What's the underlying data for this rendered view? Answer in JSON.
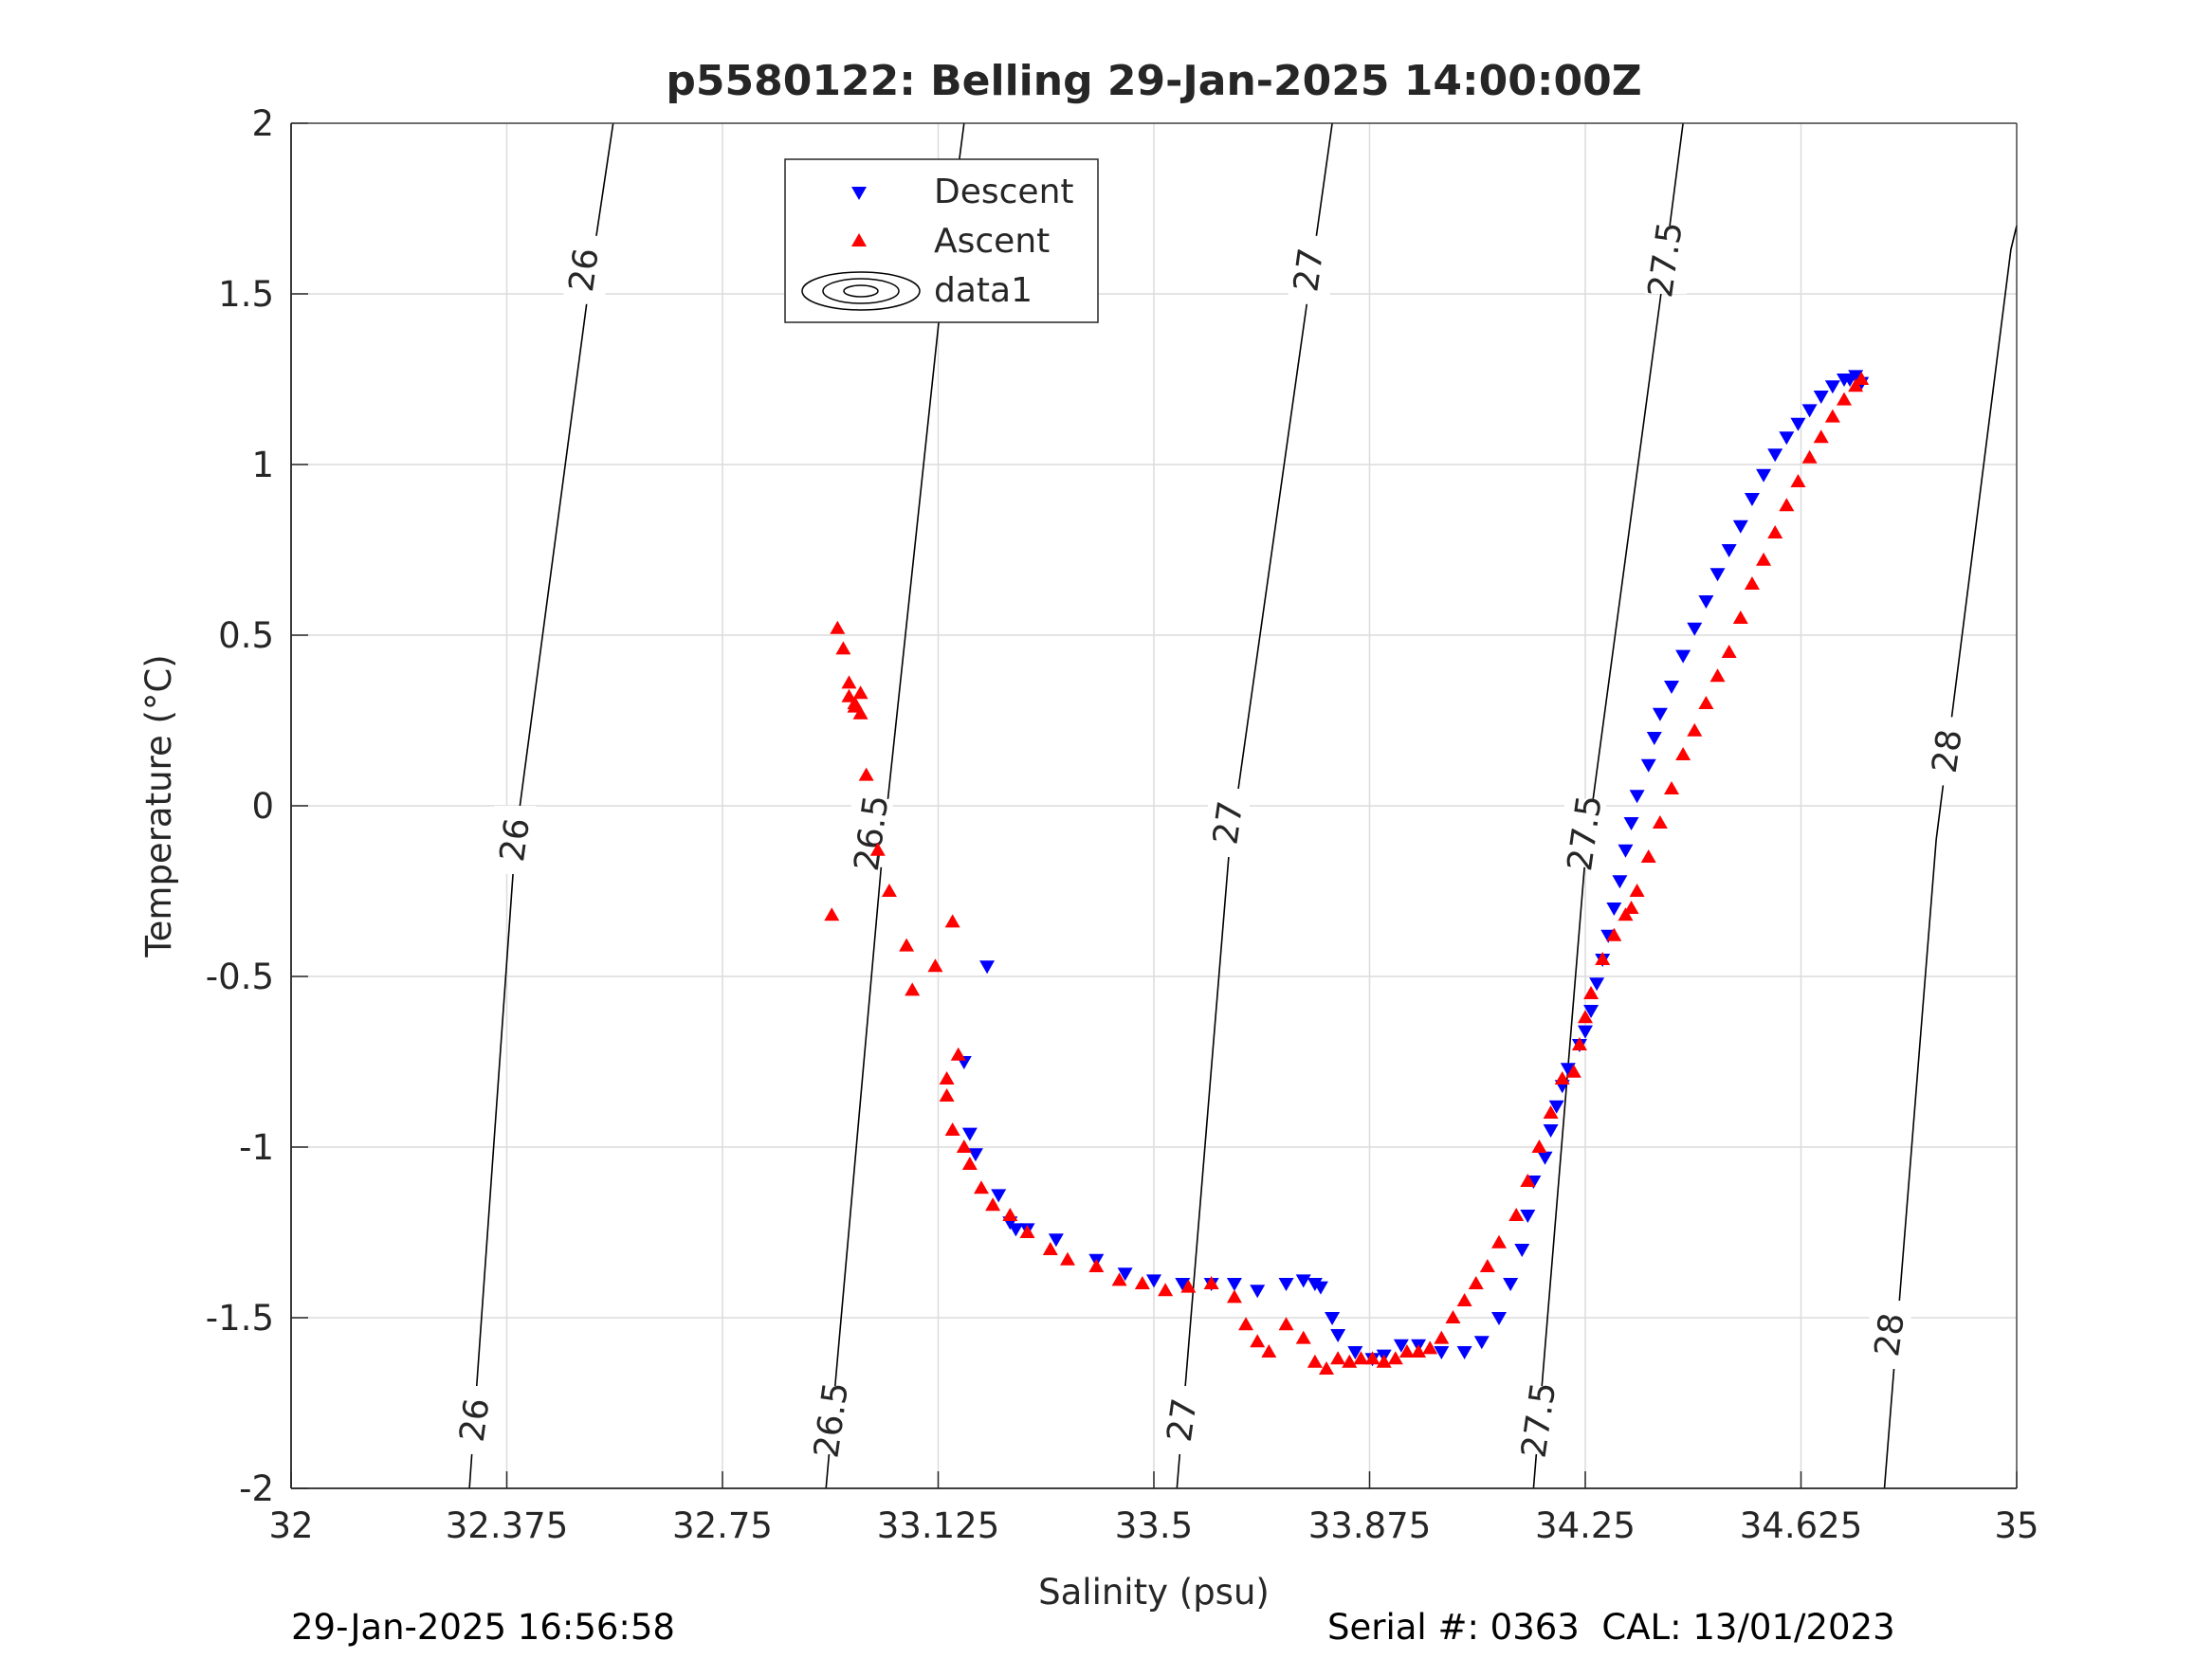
{
  "footer": {
    "timestamp": "29-Jan-2025 16:56:58",
    "serial": "Serial #: 0363  CAL: 13/01/2023"
  },
  "chart_data": {
    "type": "scatter",
    "title": "p5580122: Belling 29-Jan-2025 14:00:00Z",
    "xlabel": "Salinity (psu)",
    "ylabel": "Temperature (°C)",
    "xlim": [
      32,
      35
    ],
    "ylim": [
      -2,
      2
    ],
    "x_ticks": [
      32,
      32.375,
      32.75,
      33.125,
      33.5,
      33.875,
      34.25,
      34.625,
      35
    ],
    "x_tick_labels": [
      "32",
      "32.375",
      "32.75",
      "33.125",
      "33.5",
      "33.875",
      "34.25",
      "34.625",
      "35"
    ],
    "y_ticks": [
      -2,
      -1.5,
      -1,
      -0.5,
      0,
      0.5,
      1,
      1.5,
      2
    ],
    "y_tick_labels": [
      "-2",
      "-1.5",
      "-1",
      "-0.5",
      "0",
      "0.5",
      "1",
      "1.5",
      "2"
    ],
    "grid": true,
    "legend_position": "top-center",
    "legend": [
      "Descent",
      "Ascent",
      "data1"
    ],
    "colors": {
      "descent": "#0000ff",
      "ascent": "#ff0000",
      "contour": "#000000",
      "grid": "#dcdcdc"
    },
    "density_contours": [
      {
        "label": "26",
        "points": [
          [
            32.31,
            -2
          ],
          [
            32.39,
            -0.1
          ],
          [
            32.52,
            1.55
          ],
          [
            32.56,
            2
          ]
        ],
        "label_positions": [
          [
            32.32,
            -1.8
          ],
          [
            32.39,
            -0.1
          ],
          [
            32.51,
            1.57
          ]
        ]
      },
      {
        "label": "26.5",
        "points": [
          [
            32.93,
            -2
          ],
          [
            33.03,
            -0.1
          ],
          [
            33.13,
            1.48
          ],
          [
            33.17,
            2
          ]
        ],
        "label_positions": [
          [
            32.94,
            -1.8
          ],
          [
            33.01,
            -0.08
          ],
          [
            33.15,
            1.6
          ]
        ]
      },
      {
        "label": "27",
        "points": [
          [
            33.54,
            -2
          ],
          [
            33.63,
            -0.15
          ],
          [
            33.77,
            1.52
          ],
          [
            33.81,
            2
          ]
        ],
        "label_positions": [
          [
            33.55,
            -1.8
          ],
          [
            33.63,
            -0.05
          ],
          [
            33.77,
            1.57
          ]
        ]
      },
      {
        "label": "27.5",
        "points": [
          [
            34.16,
            -2
          ],
          [
            34.25,
            -0.15
          ],
          [
            34.38,
            1.48
          ],
          [
            34.42,
            2
          ]
        ],
        "label_positions": [
          [
            34.17,
            -1.8
          ],
          [
            34.25,
            -0.08
          ],
          [
            34.39,
            1.6
          ]
        ]
      },
      {
        "label": "28",
        "points": [
          [
            34.77,
            -2
          ],
          [
            34.86,
            -0.1
          ],
          [
            34.99,
            1.63
          ],
          [
            35.0,
            1.7
          ]
        ],
        "label_positions": [
          [
            34.78,
            -1.55
          ],
          [
            34.88,
            0.16
          ]
        ]
      }
    ],
    "series": [
      {
        "name": "Descent",
        "marker": "triangle-down",
        "color": "#0000ff",
        "x": [
          33.21,
          33.17,
          33.18,
          33.19,
          33.23,
          33.25,
          33.26,
          33.28,
          33.33,
          33.4,
          33.45,
          33.5,
          33.55,
          33.6,
          33.64,
          33.68,
          33.73,
          33.76,
          33.78,
          33.79,
          33.81,
          33.82,
          33.85,
          33.88,
          33.9,
          33.93,
          33.96,
          34.0,
          34.04,
          34.07,
          34.1,
          34.12,
          34.14,
          34.15,
          34.16,
          34.18,
          34.19,
          34.2,
          34.21,
          34.22,
          34.24,
          34.25,
          34.26,
          34.27,
          34.28,
          34.29,
          34.3,
          34.31,
          34.32,
          34.33,
          34.34,
          34.36,
          34.37,
          34.38,
          34.4,
          34.42,
          34.44,
          34.46,
          34.48,
          34.5,
          34.52,
          34.54,
          34.56,
          34.58,
          34.6,
          34.62,
          34.64,
          34.66,
          34.68,
          34.7,
          34.71,
          34.72,
          34.73
        ],
        "y": [
          -0.47,
          -0.75,
          -0.96,
          -1.02,
          -1.14,
          -1.22,
          -1.24,
          -1.24,
          -1.27,
          -1.33,
          -1.37,
          -1.39,
          -1.4,
          -1.4,
          -1.4,
          -1.42,
          -1.4,
          -1.39,
          -1.4,
          -1.41,
          -1.5,
          -1.55,
          -1.6,
          -1.62,
          -1.61,
          -1.58,
          -1.58,
          -1.6,
          -1.6,
          -1.57,
          -1.5,
          -1.4,
          -1.3,
          -1.2,
          -1.1,
          -1.03,
          -0.95,
          -0.88,
          -0.82,
          -0.77,
          -0.7,
          -0.66,
          -0.6,
          -0.52,
          -0.45,
          -0.38,
          -0.3,
          -0.22,
          -0.13,
          -0.05,
          0.03,
          0.12,
          0.2,
          0.27,
          0.35,
          0.44,
          0.52,
          0.6,
          0.68,
          0.75,
          0.82,
          0.9,
          0.97,
          1.03,
          1.08,
          1.12,
          1.16,
          1.2,
          1.23,
          1.25,
          1.25,
          1.26,
          1.24
        ]
      },
      {
        "name": "Ascent",
        "marker": "triangle-up",
        "color": "#ff0000",
        "x": [
          32.95,
          32.96,
          32.97,
          32.98,
          32.99,
          32.97,
          32.98,
          32.99,
          33.0,
          32.94,
          33.02,
          33.04,
          33.07,
          33.08,
          33.12,
          33.15,
          33.16,
          33.14,
          33.14,
          33.15,
          33.17,
          33.18,
          33.2,
          33.22,
          33.25,
          33.28,
          33.32,
          33.35,
          33.4,
          33.44,
          33.48,
          33.52,
          33.56,
          33.6,
          33.64,
          33.66,
          33.68,
          33.7,
          33.73,
          33.76,
          33.78,
          33.8,
          33.82,
          33.84,
          33.86,
          33.88,
          33.9,
          33.92,
          33.94,
          33.96,
          33.98,
          34.0,
          34.02,
          34.04,
          34.06,
          34.08,
          34.1,
          34.13,
          34.15,
          34.17,
          34.19,
          34.21,
          34.23,
          34.24,
          34.25,
          34.26,
          34.28,
          34.3,
          34.32,
          34.33,
          34.34,
          34.36,
          34.38,
          34.4,
          34.42,
          34.44,
          34.46,
          34.48,
          34.5,
          34.52,
          34.54,
          34.56,
          34.58,
          34.6,
          34.62,
          34.64,
          34.66,
          34.68,
          34.7,
          34.72,
          34.73
        ],
        "y": [
          0.52,
          0.46,
          0.36,
          0.3,
          0.27,
          0.32,
          0.29,
          0.33,
          0.09,
          -0.32,
          -0.13,
          -0.25,
          -0.41,
          -0.54,
          -0.47,
          -0.34,
          -0.73,
          -0.8,
          -0.85,
          -0.95,
          -1.0,
          -1.05,
          -1.12,
          -1.17,
          -1.2,
          -1.25,
          -1.3,
          -1.33,
          -1.35,
          -1.39,
          -1.4,
          -1.42,
          -1.41,
          -1.4,
          -1.44,
          -1.52,
          -1.57,
          -1.6,
          -1.52,
          -1.56,
          -1.63,
          -1.65,
          -1.62,
          -1.63,
          -1.62,
          -1.62,
          -1.63,
          -1.62,
          -1.6,
          -1.6,
          -1.59,
          -1.56,
          -1.5,
          -1.45,
          -1.4,
          -1.35,
          -1.28,
          -1.2,
          -1.1,
          -1.0,
          -0.9,
          -0.8,
          -0.78,
          -0.7,
          -0.62,
          -0.55,
          -0.45,
          -0.38,
          -0.32,
          -0.3,
          -0.25,
          -0.15,
          -0.05,
          0.05,
          0.15,
          0.22,
          0.3,
          0.38,
          0.45,
          0.55,
          0.65,
          0.72,
          0.8,
          0.88,
          0.95,
          1.02,
          1.08,
          1.14,
          1.19,
          1.23,
          1.25
        ]
      }
    ]
  }
}
